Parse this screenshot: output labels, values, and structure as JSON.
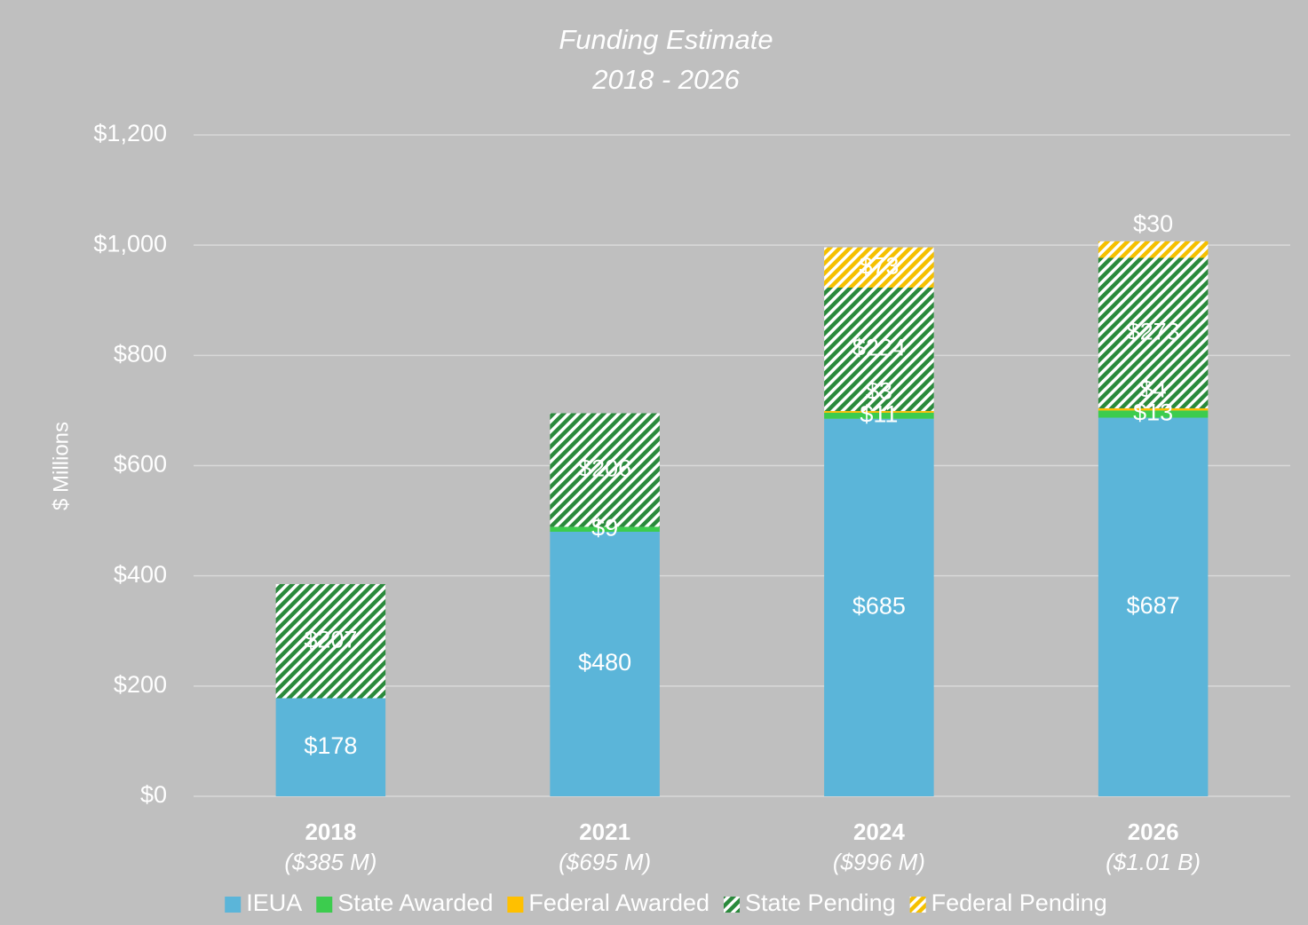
{
  "chart_data": {
    "type": "stacked_bar",
    "title": "Funding Estimate",
    "subtitle": "2018 - 2026",
    "y_label": "$ Millions",
    "categories": [
      "2018",
      "2021",
      "2024",
      "2026"
    ],
    "category_sublabels": [
      "($385 M)",
      "($695 M)",
      "($996 M)",
      "($1.01 B)"
    ],
    "series": [
      {
        "name": "IEUA",
        "color": "#5bb5d9",
        "pattern": "solid",
        "values": [
          178,
          480,
          685,
          687
        ],
        "value_labels": [
          "$178",
          "$480",
          "$685",
          "$687"
        ]
      },
      {
        "name": "State Awarded",
        "color": "#3ccc4e",
        "pattern": "solid",
        "values": [
          null,
          9,
          11,
          13
        ],
        "value_labels": [
          null,
          "$9",
          "$11",
          "$13"
        ]
      },
      {
        "name": "Federal Awarded",
        "color": "#ffc000",
        "pattern": "solid",
        "values": [
          null,
          null,
          3,
          4
        ],
        "value_labels": [
          null,
          null,
          "$3",
          "$4"
        ]
      },
      {
        "name": "State Pending",
        "color": "#2a8a3c",
        "pattern": "hatch",
        "values": [
          207,
          206,
          224,
          273
        ],
        "value_labels": [
          "$207",
          "$206",
          "$224",
          "$273"
        ]
      },
      {
        "name": "Federal Pending",
        "color": "#f5c000",
        "pattern": "hatch",
        "values": [
          null,
          null,
          73,
          30
        ],
        "value_labels": [
          null,
          null,
          "$73",
          "$30"
        ]
      }
    ],
    "ylim": [
      0,
      1200
    ],
    "yticks": [
      {
        "value": 0,
        "label": "$0"
      },
      {
        "value": 200,
        "label": "$200"
      },
      {
        "value": 400,
        "label": "$400"
      },
      {
        "value": 600,
        "label": "$600"
      },
      {
        "value": 800,
        "label": "$800"
      },
      {
        "value": 1000,
        "label": "$1,000"
      },
      {
        "value": 1200,
        "label": "$1,200"
      }
    ],
    "grid": true,
    "legend": "bottom"
  }
}
